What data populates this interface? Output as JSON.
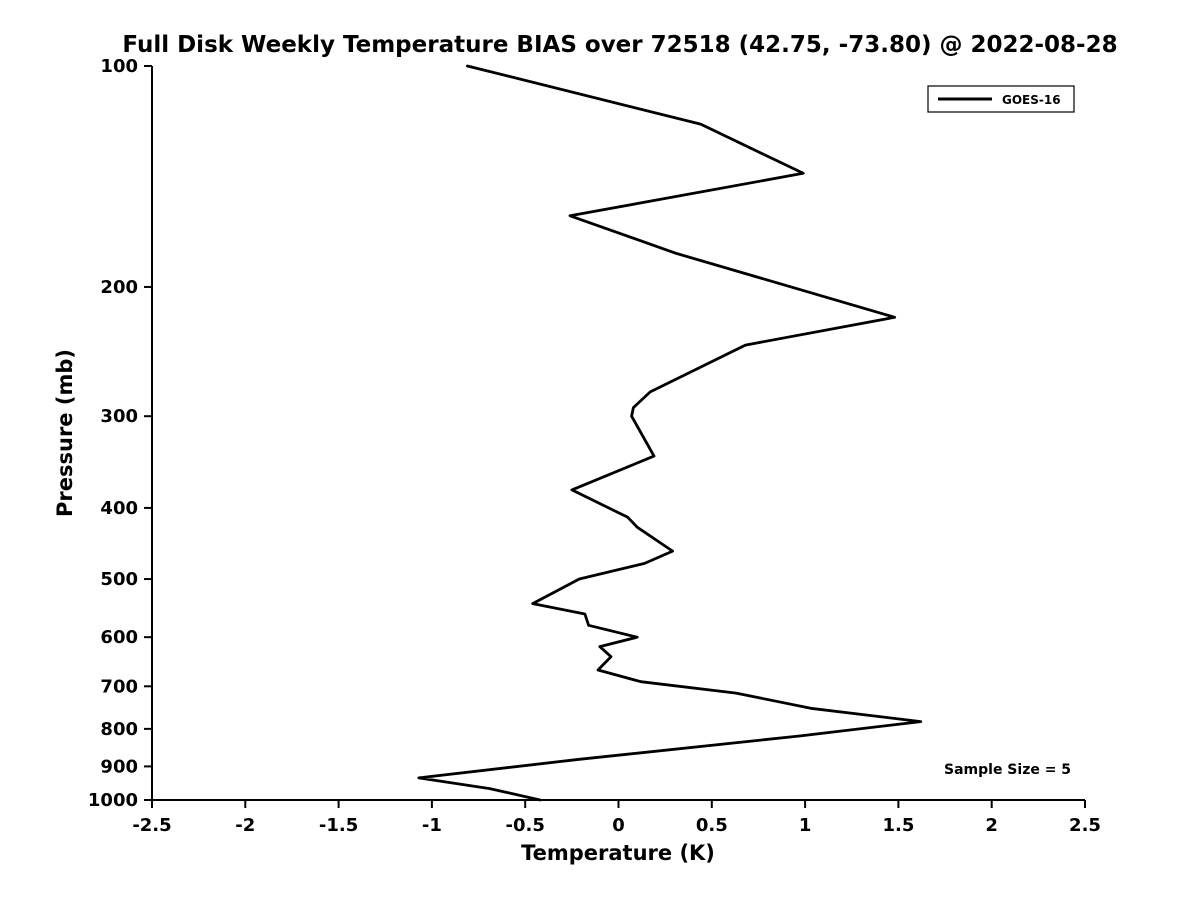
{
  "chart_data": {
    "type": "line",
    "title": "Full Disk Weekly Temperature BIAS over 72518 (42.75, -73.80) @ 2022-08-28",
    "xlabel": "Temperature (K)",
    "ylabel": "Pressure (mb)",
    "xlim": [
      -2.5,
      2.5
    ],
    "ylim": [
      100,
      1000
    ],
    "y_scale": "log-inverted",
    "grid": false,
    "line_color": "#000000",
    "legend": [
      "GOES-16"
    ],
    "legend_position": "upper-right",
    "annotation": "Sample Size = 5",
    "x_axis": {
      "ticks": [
        -2.5,
        -2,
        -1.5,
        -1,
        -0.5,
        0,
        0.5,
        1,
        1.5,
        2,
        2.5
      ],
      "labels": [
        "-2.5",
        "-2",
        "-1.5",
        "-1",
        "-0.5",
        "0",
        "0.5",
        "1",
        "1.5",
        "2",
        "2.5"
      ]
    },
    "y_axis": {
      "ticks": [
        100,
        200,
        300,
        400,
        500,
        600,
        700,
        800,
        900,
        1000
      ],
      "labels": [
        "100",
        "200",
        "300",
        "400",
        "500",
        "600",
        "700",
        "800",
        "900",
        "1000"
      ]
    },
    "series": [
      {
        "name": "GOES-16",
        "color": "#000000",
        "points": [
          [
            100,
            -0.81
          ],
          [
            120,
            0.44
          ],
          [
            140,
            0.99
          ],
          [
            160,
            -0.26
          ],
          [
            180,
            0.31
          ],
          [
            220,
            1.48
          ],
          [
            240,
            0.68
          ],
          [
            278,
            0.17
          ],
          [
            292,
            0.08
          ],
          [
            300,
            0.07
          ],
          [
            340,
            0.19
          ],
          [
            378,
            -0.25
          ],
          [
            412,
            0.05
          ],
          [
            425,
            0.1
          ],
          [
            458,
            0.29
          ],
          [
            476,
            0.14
          ],
          [
            500,
            -0.21
          ],
          [
            540,
            -0.46
          ],
          [
            558,
            -0.18
          ],
          [
            578,
            -0.16
          ],
          [
            600,
            0.1
          ],
          [
            618,
            -0.1
          ],
          [
            638,
            -0.04
          ],
          [
            665,
            -0.11
          ],
          [
            690,
            0.12
          ],
          [
            715,
            0.63
          ],
          [
            750,
            1.03
          ],
          [
            782,
            1.62
          ],
          [
            818,
            0.97
          ],
          [
            880,
            -0.21
          ],
          [
            933,
            -1.07
          ],
          [
            965,
            -0.69
          ],
          [
            1000,
            -0.42
          ]
        ]
      }
    ]
  }
}
